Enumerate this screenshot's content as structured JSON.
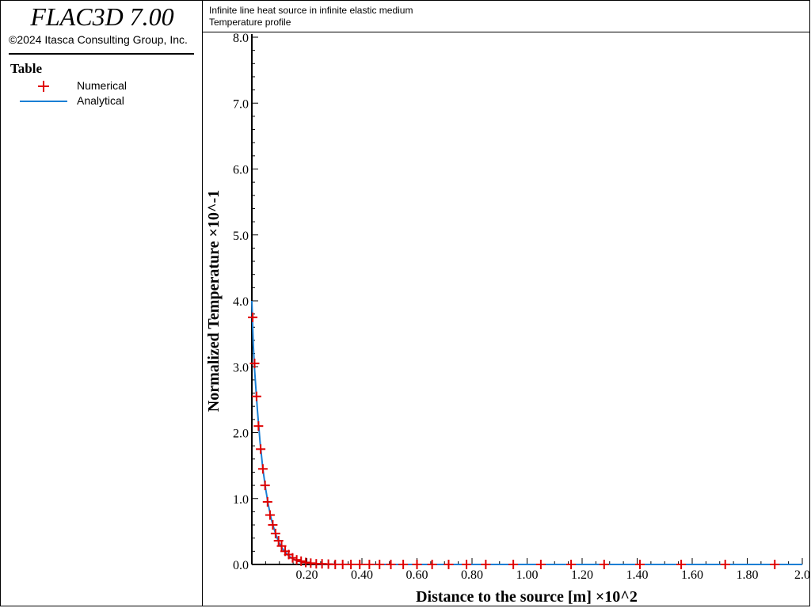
{
  "app": {
    "title": "FLAC3D 7.00",
    "copyright": "©2024 Itasca Consulting Group, Inc."
  },
  "legend": {
    "title": "Table",
    "items": [
      {
        "label": "Numerical",
        "color": "#e00000",
        "icon": "plus-marker-icon"
      },
      {
        "label": "Analytical",
        "color": "#1a7fd4",
        "icon": "line-marker-icon"
      }
    ]
  },
  "plot": {
    "title": "Infinite line heat source in infinite elastic medium",
    "subtitle": "Temperature profile"
  },
  "chart_data": {
    "type": "scatter",
    "xlabel": "Distance to the source [m] ×10^2",
    "ylabel": "Normalized Temperature ×10^-1",
    "xlim": [
      0,
      2.0
    ],
    "ylim": [
      0,
      8.0
    ],
    "xticks": [
      0.2,
      0.4,
      0.6,
      0.8,
      1.0,
      1.2,
      1.4,
      1.6,
      1.8,
      2.0
    ],
    "xtick_labels": [
      "0.20",
      "0.40",
      "0.60",
      "0.80",
      "1.00",
      "1.20",
      "1.40",
      "1.60",
      "1.80",
      "2.0"
    ],
    "yticks": [
      0,
      1,
      2,
      3,
      4,
      5,
      6,
      7,
      8
    ],
    "ytick_labels": [
      "0.0",
      "1.0",
      "2.0",
      "3.0",
      "4.0",
      "5.0",
      "6.0",
      "7.0",
      "8.0"
    ],
    "series": [
      {
        "name": "Numerical",
        "marker": "plus",
        "color": "#e00000",
        "x": [
          0.003,
          0.01,
          0.017,
          0.024,
          0.032,
          0.04,
          0.048,
          0.057,
          0.066,
          0.076,
          0.086,
          0.097,
          0.108,
          0.121,
          0.134,
          0.148,
          0.163,
          0.179,
          0.196,
          0.214,
          0.234,
          0.255,
          0.278,
          0.303,
          0.33,
          0.36,
          0.392,
          0.427,
          0.464,
          0.505,
          0.55,
          0.6,
          0.655,
          0.715,
          0.78,
          0.85,
          0.95,
          1.05,
          1.16,
          1.28,
          1.41,
          1.56,
          1.72,
          1.9
        ],
        "y": [
          3.75,
          3.05,
          2.55,
          2.1,
          1.75,
          1.45,
          1.2,
          0.95,
          0.75,
          0.6,
          0.47,
          0.36,
          0.28,
          0.2,
          0.15,
          0.1,
          0.07,
          0.05,
          0.03,
          0.02,
          0.01,
          0.01,
          0.005,
          0.0,
          0.0,
          0.0,
          0.0,
          0.0,
          0.0,
          0.0,
          0.0,
          0.0,
          0.0,
          0.0,
          0.0,
          0.0,
          0.0,
          0.0,
          0.0,
          0.0,
          0.0,
          0.0,
          0.0,
          0.0
        ]
      },
      {
        "name": "Analytical",
        "marker": "line",
        "color": "#1a7fd4",
        "x": [
          0.0,
          0.005,
          0.01,
          0.015,
          0.02,
          0.025,
          0.03,
          0.04,
          0.05,
          0.06,
          0.07,
          0.08,
          0.09,
          0.1,
          0.11,
          0.12,
          0.14,
          0.16,
          0.18,
          0.2,
          0.22,
          0.25,
          0.3,
          0.4,
          0.6,
          1.0,
          1.5,
          2.0
        ],
        "y": [
          4.0,
          3.35,
          2.95,
          2.65,
          2.35,
          2.1,
          1.85,
          1.45,
          1.15,
          0.9,
          0.7,
          0.55,
          0.42,
          0.32,
          0.25,
          0.19,
          0.11,
          0.06,
          0.035,
          0.02,
          0.01,
          0.004,
          0.001,
          0.0,
          0.0,
          0.0,
          0.0,
          0.0
        ]
      }
    ]
  }
}
